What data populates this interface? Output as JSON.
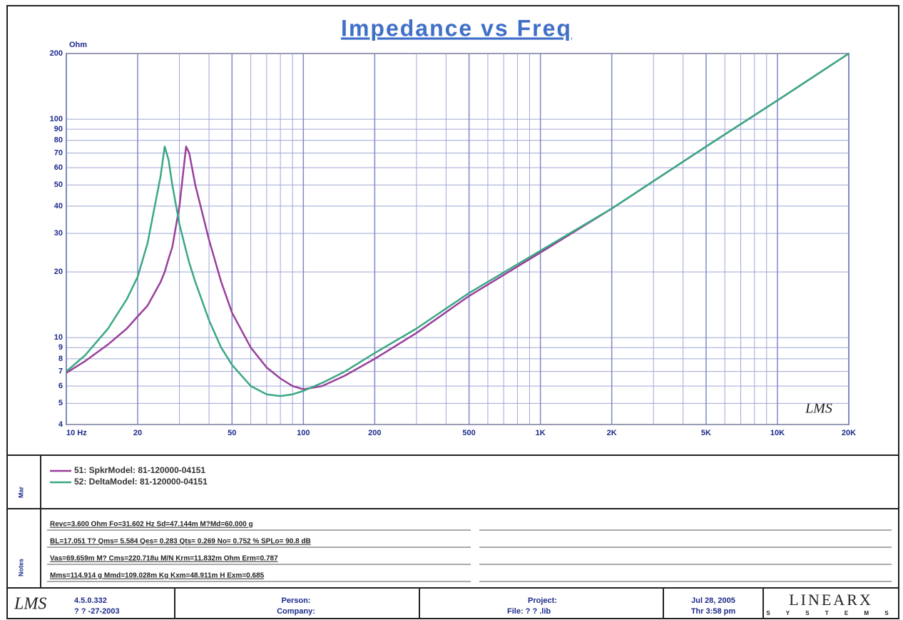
{
  "chart_data": {
    "type": "line",
    "title": "Impedance vs Freq",
    "y_unit": "Ohm",
    "xscale": "log",
    "yscale": "log",
    "xlim": [
      10,
      20000
    ],
    "ylim": [
      4,
      200
    ],
    "xticks": [
      {
        "value": 10,
        "label": "10 Hz"
      },
      20,
      50,
      100,
      200,
      500,
      {
        "value": 1000,
        "label": "1K"
      },
      {
        "value": 2000,
        "label": "2K"
      },
      {
        "value": 5000,
        "label": "5K"
      },
      {
        "value": 10000,
        "label": "10K"
      },
      {
        "value": 20000,
        "label": "20K"
      }
    ],
    "xminorticks": [
      30,
      40,
      60,
      70,
      80,
      90,
      300,
      400,
      600,
      700,
      800,
      900,
      3000,
      4000,
      6000,
      7000,
      8000,
      9000
    ],
    "yticks": [
      4,
      5,
      6,
      7,
      8,
      9,
      10,
      20,
      30,
      40,
      50,
      60,
      70,
      80,
      90,
      100,
      200
    ],
    "grid": true,
    "x": [
      10,
      12,
      15,
      18,
      20,
      22,
      25,
      26,
      27,
      28,
      30,
      32,
      33,
      35,
      40,
      45,
      50,
      60,
      70,
      80,
      90,
      100,
      120,
      150,
      200,
      300,
      500,
      1000,
      2000,
      5000,
      10000,
      20000
    ],
    "series": [
      {
        "name": "51: SpkrModel: 81-120000-04151",
        "color": "#9a3f9c",
        "values": [
          6.9,
          7.8,
          9.3,
          11,
          12.5,
          14,
          18,
          20,
          23,
          26,
          40,
          75,
          70,
          50,
          28,
          18,
          13,
          9,
          7.3,
          6.5,
          6.0,
          5.8,
          6.0,
          6.7,
          8.0,
          10.5,
          15.5,
          24.5,
          39,
          75,
          122,
          200
        ]
      },
      {
        "name": "52: DeltaModel: 81-120000-04151",
        "color": "#3aa884",
        "values": [
          7.0,
          8.3,
          11,
          15,
          19,
          27,
          55,
          75,
          65,
          50,
          33,
          25,
          22,
          18,
          12,
          9,
          7.5,
          6.0,
          5.5,
          5.4,
          5.5,
          5.7,
          6.2,
          7.0,
          8.5,
          11,
          16,
          25,
          39,
          75,
          122,
          200
        ]
      }
    ],
    "logo": "LMS"
  },
  "panel": {
    "marker_label": "Mar",
    "notes_label": "Notes",
    "notes": [
      "Revc=3.600 Ohm  Fo=31.602 Hz  Sd=47.144m M?Md=60.000 g",
      "BL=17.051 T?   Qms= 5.584  Qes= 0.283  Qts= 0.269  No= 0.752 %  SPLo= 90.8 dB",
      "Vas=69.659m M? Cms=220.718u M/N  Krm=11.832m Ohm  Erm=0.787",
      "Mms=114.914 g  Mmd=109.028m Kg  Kxm=48.911m H  Exm=0.685"
    ]
  },
  "footer": {
    "logo": "LMS",
    "version": "4.5.0.332",
    "version_date": "? ? -27-2003",
    "person": "Person:",
    "company": "Company:",
    "project": "Project:",
    "file": "File: ? ? .lib",
    "date": "Jul 28, 2005",
    "time": "Thr  3:58 pm",
    "brand": "LINEARX",
    "brand_sub": "S Y S T E M S"
  }
}
